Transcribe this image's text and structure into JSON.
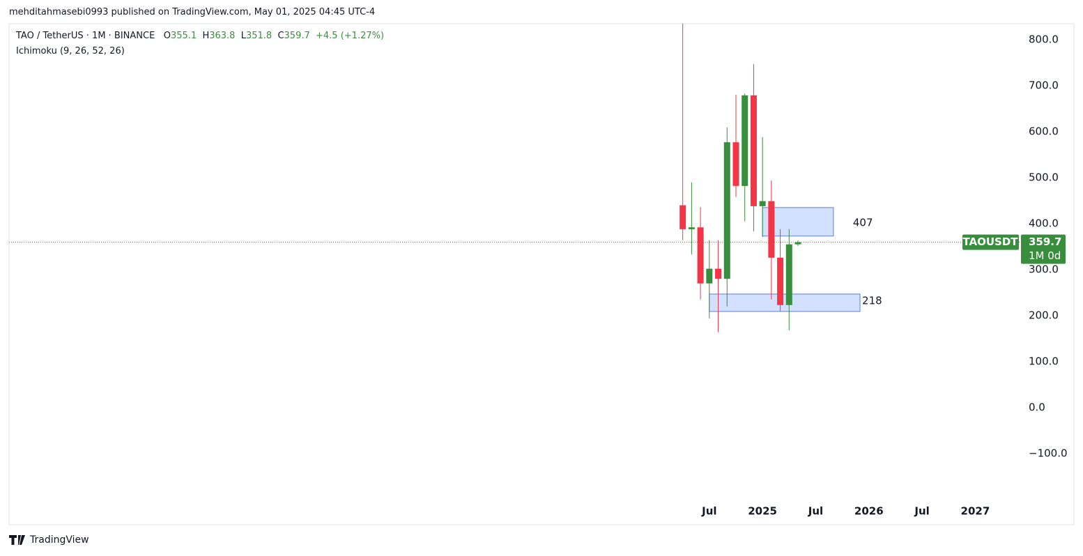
{
  "header": {
    "published": "mehditahmasebi0993 published on TradingView.com, May 01, 2025 04:45 UTC-4"
  },
  "chart_data": {
    "type": "candlestick",
    "symbol": "TAO / TetherUS · 1M · BINANCE",
    "indicator": "Ichimoku (9, 26, 52, 26)",
    "ohlc_labels": [
      "O",
      "H",
      "L",
      "C"
    ],
    "change": "+4.5 (+1.27%)",
    "x": [
      "2024-04",
      "2024-05",
      "2024-06",
      "2024-07",
      "2024-08",
      "2024-09",
      "2024-10",
      "2024-11",
      "2024-12",
      "2025-01",
      "2025-02",
      "2025-03",
      "2025-04",
      "2025-05"
    ],
    "open": [
      440,
      388,
      392,
      270,
      302,
      280,
      577,
      482,
      679,
      438,
      449,
      326,
      223,
      355.1
    ],
    "high": [
      835,
      490,
      436,
      364,
      364,
      609,
      680,
      683,
      747,
      588,
      494,
      388,
      388,
      363.8
    ],
    "low": [
      364,
      333,
      235,
      194,
      164,
      220,
      458,
      405,
      383,
      371,
      235,
      209,
      168,
      351.8
    ],
    "close": [
      388,
      392,
      270,
      302,
      280,
      577,
      482,
      679,
      438,
      449,
      326,
      223,
      355,
      359.7
    ],
    "up_color": "#388e3c",
    "down_color": "#f23645",
    "xlim": [
      "2017-12",
      "2027-06"
    ],
    "ylim": [
      -200,
      833.3
    ],
    "xticks": [
      {
        "value": "2024-07",
        "label": "Jul"
      },
      {
        "value": "2025-01",
        "label": "2025"
      },
      {
        "value": "2025-07",
        "label": "Jul"
      },
      {
        "value": "2026-01",
        "label": "2026"
      },
      {
        "value": "2026-07",
        "label": "Jul"
      },
      {
        "value": "2027-01",
        "label": "2027"
      }
    ],
    "yticks": [
      {
        "value": 800,
        "label": "800.0"
      },
      {
        "value": 700,
        "label": "700.0"
      },
      {
        "value": 600,
        "label": "600.0"
      },
      {
        "value": 500,
        "label": "500.0"
      },
      {
        "value": 400,
        "label": "400.0"
      },
      {
        "value": 300,
        "label": "300.0"
      },
      {
        "value": 200,
        "label": "200.0"
      },
      {
        "value": 100,
        "label": "100.0"
      },
      {
        "value": 0,
        "label": "0.0"
      },
      {
        "value": -100,
        "label": "−100.0"
      }
    ],
    "zones": [
      {
        "x0": "2025-01",
        "x1": "2025-09",
        "top": 435,
        "bottom": 373,
        "level": 407
      },
      {
        "x0": "2024-07",
        "x1": "2025-12",
        "top": 247,
        "bottom": 209,
        "level": 218
      }
    ],
    "symbol_tag": "TAOUSDT",
    "countdown": "1M 0d"
  },
  "footer": {
    "brand": "TradingView"
  }
}
